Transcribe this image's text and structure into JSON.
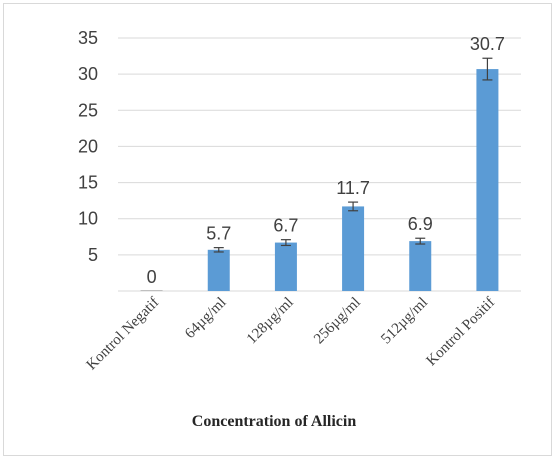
{
  "chart_data": {
    "type": "bar",
    "title": "",
    "xlabel": "Concentration of Allicin",
    "ylabel": "",
    "categories": [
      "Kontrol Negatif",
      "64µg/ml",
      "128µg/ml",
      "256µg/ml",
      "512µg/ml",
      "Kontrol Positif"
    ],
    "values": [
      0,
      5.7,
      6.7,
      11.7,
      6.9,
      30.7
    ],
    "data_labels": [
      "0",
      "5.7",
      "6.7",
      "11.7",
      "6.9",
      "30.7"
    ],
    "errors": [
      0,
      0.3,
      0.4,
      0.6,
      0.4,
      1.5
    ],
    "y_ticks": [
      "35",
      "30",
      "25",
      "20",
      "15",
      "10",
      "5"
    ],
    "ylim": [
      0,
      35
    ],
    "grid": true,
    "legend": "none",
    "colors": {
      "bar": "#5b9bd5",
      "grid": "#d9d9d9",
      "text": "#404040",
      "error_bar": "#404040"
    }
  }
}
